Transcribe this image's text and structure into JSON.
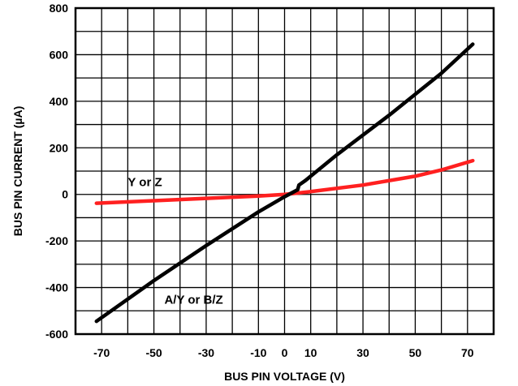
{
  "chart_data": {
    "type": "line",
    "title": "",
    "xlabel": "BUS PIN VOLTAGE (V)",
    "ylabel": "BUS PIN CURRENT (µA)",
    "xlim": [
      -80,
      80
    ],
    "ylim": [
      -600,
      800
    ],
    "xticks": [
      -70,
      -50,
      -30,
      -10,
      0,
      10,
      30,
      50,
      70
    ],
    "yticks": [
      -600,
      -400,
      -200,
      0,
      200,
      400,
      600,
      800
    ],
    "grid": true,
    "series": [
      {
        "name": "A/Y or B/Z",
        "color": "#000000",
        "points": [
          [
            -72,
            -545
          ],
          [
            -50,
            -370
          ],
          [
            -30,
            -220
          ],
          [
            -10,
            -75
          ],
          [
            0,
            -10
          ],
          [
            5,
            20
          ],
          [
            5.5,
            40
          ],
          [
            8,
            60
          ],
          [
            20,
            170
          ],
          [
            40,
            340
          ],
          [
            60,
            520
          ],
          [
            72,
            645
          ]
        ]
      },
      {
        "name": "Y or Z",
        "color": "#ff2020",
        "points": [
          [
            -72,
            -38
          ],
          [
            -50,
            -27
          ],
          [
            -30,
            -17
          ],
          [
            -10,
            -7
          ],
          [
            0,
            0
          ],
          [
            10,
            12
          ],
          [
            30,
            40
          ],
          [
            50,
            78
          ],
          [
            60,
            105
          ],
          [
            72,
            145
          ]
        ]
      }
    ],
    "annotations": [
      {
        "text": "Y or Z",
        "x": -60,
        "y": 35
      },
      {
        "text": "A/Y or B/Z",
        "x": -46,
        "y": -470
      }
    ]
  }
}
